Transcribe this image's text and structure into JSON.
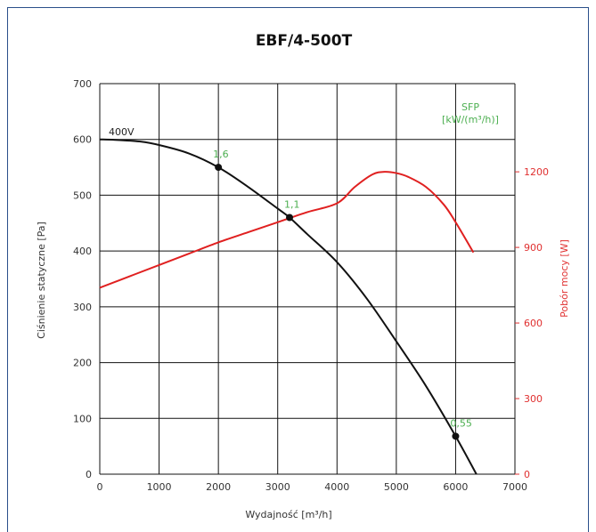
{
  "chart_data": {
    "type": "line",
    "title": "EBF/4-500T",
    "xlabel": "Wydajność [m³/h]",
    "ylabel": "Ciśnienie statyczne [Pa]",
    "y2label": "Pobór mocy [W]",
    "xlim": [
      0,
      7000
    ],
    "ylim": [
      0,
      700
    ],
    "y2lim": [
      0,
      1550
    ],
    "x_ticks": [
      "0",
      "1000",
      "2000",
      "3000",
      "4000",
      "5000",
      "6000",
      "7000"
    ],
    "y_ticks": [
      "0",
      "100",
      "200",
      "300",
      "400",
      "500",
      "600",
      "700"
    ],
    "y2_ticks": [
      "0",
      "300",
      "600",
      "900",
      "1200"
    ],
    "grid": true,
    "series": [
      {
        "name": "400V",
        "axis": "left",
        "color": "#111111",
        "x": [
          0,
          300,
          700,
          1000,
          1500,
          2000,
          2500,
          3000,
          3200,
          3500,
          4000,
          4500,
          5000,
          5500,
          6000,
          6350
        ],
        "y": [
          600,
          599,
          596,
          590,
          575,
          550,
          515,
          476,
          460,
          430,
          380,
          315,
          238,
          158,
          68,
          0
        ]
      },
      {
        "name": "Pobór mocy",
        "axis": "right",
        "color": "#e02020",
        "x": [
          0,
          500,
          1000,
          1500,
          2000,
          2500,
          3000,
          3500,
          4000,
          4300,
          4600,
          4800,
          5000,
          5200,
          5500,
          5800,
          6000,
          6300
        ],
        "y": [
          740,
          785,
          830,
          875,
          920,
          960,
          1000,
          1040,
          1075,
          1140,
          1190,
          1200,
          1195,
          1180,
          1140,
          1070,
          1000,
          880
        ]
      }
    ],
    "operating_points": [
      {
        "x": 2000,
        "y": 550,
        "label": "1,6"
      },
      {
        "x": 3200,
        "y": 460,
        "label": "1,1"
      },
      {
        "x": 6000,
        "y": 68,
        "label": "0,55"
      }
    ],
    "annotations": {
      "curve_label": "400V",
      "sfp_line1": "SFP",
      "sfp_line2": "[kW/(m³/h)]"
    }
  }
}
